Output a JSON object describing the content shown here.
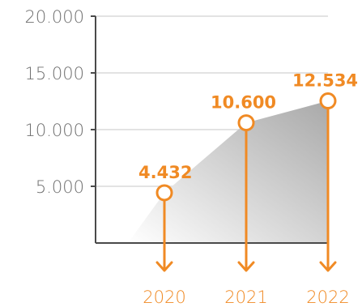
{
  "chart_data": {
    "type": "area",
    "categories": [
      "2020",
      "2021",
      "2022"
    ],
    "values": [
      4432,
      10600,
      12534
    ],
    "value_labels": [
      "4.432",
      "10.600",
      "12.534"
    ],
    "ylim": [
      0,
      20000
    ],
    "yticks": [
      5000,
      10000,
      15000,
      20000
    ],
    "ytick_labels": [
      "5.000",
      "10.000",
      "15.000",
      "20.000"
    ],
    "grid": true,
    "title": "",
    "xlabel": "",
    "ylabel": ""
  },
  "colors": {
    "accent": "#f08a24",
    "axis": "#4a4a4a",
    "grid": "#e3e3e3",
    "tick_text": "#6f6f6f",
    "area_dark": "#a9a9a9",
    "area_light": "#ffffff"
  },
  "icons": {
    "marker": "circle-marker-icon",
    "arrow": "arrow-down-icon"
  }
}
